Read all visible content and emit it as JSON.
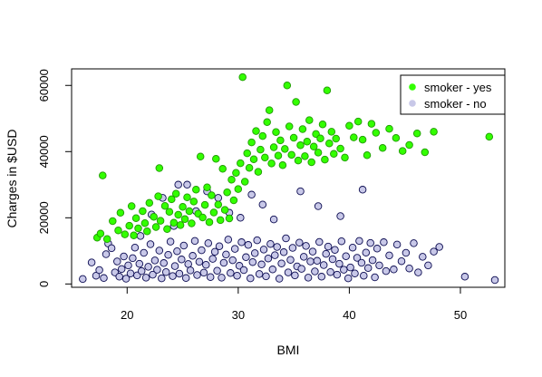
{
  "chart_data": {
    "type": "scatter",
    "xlabel": "BMI",
    "ylabel": "Charges in $USD",
    "xlim": [
      15,
      54
    ],
    "ylim": [
      -1000,
      65000
    ],
    "x_ticks": [
      20,
      30,
      40,
      50
    ],
    "y_ticks": [
      0,
      20000,
      40000,
      60000
    ],
    "x_tick_labels": [
      "20",
      "30",
      "40",
      "50"
    ],
    "y_tick_labels": [
      "0",
      "20000",
      "40000",
      "60000"
    ],
    "legend": {
      "position": "top-right",
      "entries": [
        {
          "label": "smoker - yes",
          "color": "#33ff00"
        },
        {
          "label": "smoker - no",
          "color": "#c8c8e8"
        }
      ]
    },
    "series": [
      {
        "name": "smoker - no",
        "fill": "#c8c8e8",
        "stroke": "#0a0a50",
        "points": [
          [
            16,
            1500
          ],
          [
            16.8,
            6500
          ],
          [
            17.2,
            2500
          ],
          [
            17.5,
            4200
          ],
          [
            17.9,
            1800
          ],
          [
            18.1,
            9000
          ],
          [
            18.3,
            12200
          ],
          [
            18.6,
            10800
          ],
          [
            18.9,
            3500
          ],
          [
            19.1,
            6800
          ],
          [
            19.3,
            2200
          ],
          [
            19.5,
            4500
          ],
          [
            19.7,
            8300
          ],
          [
            19.9,
            1600
          ],
          [
            20.1,
            5600
          ],
          [
            20.3,
            3200
          ],
          [
            20.5,
            7800
          ],
          [
            20.7,
            11000
          ],
          [
            20.9,
            2600
          ],
          [
            21.1,
            6100
          ],
          [
            21.2,
            14500
          ],
          [
            21.3,
            3900
          ],
          [
            21.5,
            9400
          ],
          [
            21.7,
            1900
          ],
          [
            21.9,
            5200
          ],
          [
            22.1,
            12000
          ],
          [
            22.2,
            21000
          ],
          [
            22.3,
            2800
          ],
          [
            22.5,
            7100
          ],
          [
            22.7,
            4300
          ],
          [
            22.9,
            10100
          ],
          [
            23.1,
            1700
          ],
          [
            23.2,
            26000
          ],
          [
            23.3,
            6300
          ],
          [
            23.5,
            3600
          ],
          [
            23.7,
            8800
          ],
          [
            23.9,
            12800
          ],
          [
            24.1,
            2400
          ],
          [
            24.2,
            17500
          ],
          [
            24.3,
            5400
          ],
          [
            24.5,
            9900
          ],
          [
            24.6,
            30000
          ],
          [
            24.7,
            3100
          ],
          [
            24.9,
            7400
          ],
          [
            25.1,
            11600
          ],
          [
            25.3,
            1800
          ],
          [
            25.4,
            30000
          ],
          [
            25.5,
            6000
          ],
          [
            25.7,
            4100
          ],
          [
            25.9,
            8500
          ],
          [
            26.1,
            13000
          ],
          [
            26.2,
            22000
          ],
          [
            26.3,
            2700
          ],
          [
            26.5,
            6700
          ],
          [
            26.7,
            10200
          ],
          [
            26.9,
            3400
          ],
          [
            27.1,
            5800
          ],
          [
            27.2,
            28000
          ],
          [
            27.3,
            12300
          ],
          [
            27.5,
            2100
          ],
          [
            27.7,
            7600
          ],
          [
            27.9,
            9700
          ],
          [
            28.1,
            4000
          ],
          [
            28.2,
            26000
          ],
          [
            28.3,
            11400
          ],
          [
            28.5,
            1900
          ],
          [
            28.7,
            6400
          ],
          [
            28.9,
            8900
          ],
          [
            29.1,
            13400
          ],
          [
            29.2,
            21500
          ],
          [
            29.3,
            3300
          ],
          [
            29.5,
            7200
          ],
          [
            29.7,
            10600
          ],
          [
            29.9,
            2500
          ],
          [
            30.1,
            5500
          ],
          [
            30.2,
            20000
          ],
          [
            30.3,
            12600
          ],
          [
            30.5,
            4200
          ],
          [
            30.7,
            8100
          ],
          [
            30.9,
            11800
          ],
          [
            31.1,
            1700
          ],
          [
            31.2,
            27000
          ],
          [
            31.3,
            6600
          ],
          [
            31.5,
            9300
          ],
          [
            31.7,
            13200
          ],
          [
            31.9,
            3000
          ],
          [
            32.1,
            5900
          ],
          [
            32.2,
            24000
          ],
          [
            32.3,
            10400
          ],
          [
            32.5,
            2300
          ],
          [
            32.7,
            7700
          ],
          [
            32.9,
            12100
          ],
          [
            33.1,
            4400
          ],
          [
            33.2,
            19500
          ],
          [
            33.3,
            8700
          ],
          [
            33.5,
            11200
          ],
          [
            33.7,
            1600
          ],
          [
            33.9,
            6200
          ],
          [
            34.1,
            9600
          ],
          [
            34.3,
            13800
          ],
          [
            34.5,
            3500
          ],
          [
            34.7,
            7300
          ],
          [
            34.9,
            10900
          ],
          [
            35.1,
            2600
          ],
          [
            35.3,
            5300
          ],
          [
            35.5,
            12500
          ],
          [
            35.6,
            28000
          ],
          [
            35.7,
            4600
          ],
          [
            35.9,
            8200
          ],
          [
            36.1,
            11500
          ],
          [
            36.3,
            1900
          ],
          [
            36.5,
            6800
          ],
          [
            36.7,
            9800
          ],
          [
            36.9,
            3800
          ],
          [
            37.1,
            7000
          ],
          [
            37.2,
            23500
          ],
          [
            37.3,
            12700
          ],
          [
            37.5,
            2200
          ],
          [
            37.7,
            5700
          ],
          [
            37.9,
            9100
          ],
          [
            38.1,
            11300
          ],
          [
            38.3,
            3600
          ],
          [
            38.5,
            7500
          ],
          [
            38.7,
            10300
          ],
          [
            38.9,
            2800
          ],
          [
            39.1,
            6100
          ],
          [
            39.2,
            20500
          ],
          [
            39.3,
            12900
          ],
          [
            39.5,
            4300
          ],
          [
            39.7,
            8400
          ],
          [
            39.9,
            1700
          ],
          [
            40.1,
            5000
          ],
          [
            40.3,
            11000
          ],
          [
            40.5,
            3200
          ],
          [
            40.7,
            7900
          ],
          [
            40.9,
            13000
          ],
          [
            41.1,
            6400
          ],
          [
            41.2,
            28500
          ],
          [
            41.3,
            2500
          ],
          [
            41.5,
            9500
          ],
          [
            41.7,
            4800
          ],
          [
            41.9,
            12400
          ],
          [
            42.1,
            7200
          ],
          [
            42.3,
            2000
          ],
          [
            42.5,
            10700
          ],
          [
            42.7,
            5600
          ],
          [
            43.1,
            12600
          ],
          [
            43.3,
            3900
          ],
          [
            43.6,
            8600
          ],
          [
            44.0,
            4400
          ],
          [
            44.3,
            11900
          ],
          [
            44.7,
            6900
          ],
          [
            45.1,
            9400
          ],
          [
            45.4,
            4700
          ],
          [
            45.8,
            12300
          ],
          [
            46.2,
            3500
          ],
          [
            46.6,
            8200
          ],
          [
            47.1,
            5600
          ],
          [
            47.6,
            9800
          ],
          [
            48.1,
            11200
          ],
          [
            50.4,
            2200
          ],
          [
            53.1,
            1200
          ]
        ]
      },
      {
        "name": "smoker - yes",
        "fill": "#33ff00",
        "stroke": "#1f9900",
        "points": [
          [
            17.3,
            14000
          ],
          [
            17.6,
            15200
          ],
          [
            17.8,
            32800
          ],
          [
            18.2,
            13600
          ],
          [
            18.7,
            19000
          ],
          [
            19.2,
            16200
          ],
          [
            19.4,
            21500
          ],
          [
            19.8,
            15000
          ],
          [
            20.2,
            17600
          ],
          [
            20.4,
            23500
          ],
          [
            20.6,
            14700
          ],
          [
            20.8,
            19900
          ],
          [
            21.0,
            16800
          ],
          [
            21.4,
            22000
          ],
          [
            21.6,
            18400
          ],
          [
            21.8,
            15900
          ],
          [
            22.0,
            24500
          ],
          [
            22.4,
            20300
          ],
          [
            22.6,
            17200
          ],
          [
            22.8,
            26500
          ],
          [
            22.9,
            35000
          ],
          [
            23.0,
            19100
          ],
          [
            23.4,
            23600
          ],
          [
            23.6,
            16600
          ],
          [
            23.8,
            21800
          ],
          [
            24.0,
            25600
          ],
          [
            24.2,
            18500
          ],
          [
            24.4,
            27300
          ],
          [
            24.6,
            20900
          ],
          [
            24.8,
            17800
          ],
          [
            25.0,
            23300
          ],
          [
            25.2,
            19600
          ],
          [
            25.4,
            26200
          ],
          [
            25.6,
            22000
          ],
          [
            25.8,
            18300
          ],
          [
            26.0,
            24900
          ],
          [
            26.2,
            28500
          ],
          [
            26.4,
            21200
          ],
          [
            26.6,
            38500
          ],
          [
            26.8,
            20100
          ],
          [
            27.0,
            23900
          ],
          [
            27.2,
            29200
          ],
          [
            27.4,
            18700
          ],
          [
            27.6,
            26800
          ],
          [
            27.8,
            21600
          ],
          [
            28.0,
            37800
          ],
          [
            28.2,
            24000
          ],
          [
            28.4,
            19300
          ],
          [
            28.6,
            34800
          ],
          [
            28.8,
            22400
          ],
          [
            29.0,
            27700
          ],
          [
            29.2,
            19800
          ],
          [
            29.4,
            31500
          ],
          [
            29.6,
            25300
          ],
          [
            29.8,
            33600
          ],
          [
            30.0,
            28700
          ],
          [
            30.2,
            36500
          ],
          [
            30.4,
            62500
          ],
          [
            30.6,
            30900
          ],
          [
            30.8,
            39500
          ],
          [
            31.0,
            35100
          ],
          [
            31.2,
            42800
          ],
          [
            31.4,
            37700
          ],
          [
            31.6,
            46200
          ],
          [
            31.8,
            33900
          ],
          [
            32.0,
            40600
          ],
          [
            32.2,
            44700
          ],
          [
            32.4,
            38200
          ],
          [
            32.6,
            48900
          ],
          [
            32.8,
            52500
          ],
          [
            33.0,
            36400
          ],
          [
            33.2,
            41300
          ],
          [
            33.4,
            45900
          ],
          [
            33.6,
            38800
          ],
          [
            33.8,
            43400
          ],
          [
            34.0,
            35900
          ],
          [
            34.2,
            40800
          ],
          [
            34.4,
            60000
          ],
          [
            34.6,
            47600
          ],
          [
            34.8,
            39000
          ],
          [
            35.0,
            44200
          ],
          [
            35.2,
            55000
          ],
          [
            35.4,
            37300
          ],
          [
            35.6,
            41900
          ],
          [
            35.8,
            46800
          ],
          [
            36.0,
            38600
          ],
          [
            36.2,
            43000
          ],
          [
            36.4,
            49500
          ],
          [
            36.6,
            36800
          ],
          [
            36.8,
            41500
          ],
          [
            37.0,
            45300
          ],
          [
            37.2,
            39700
          ],
          [
            37.4,
            44000
          ],
          [
            37.6,
            48200
          ],
          [
            37.8,
            37600
          ],
          [
            38.0,
            58500
          ],
          [
            38.2,
            42500
          ],
          [
            38.4,
            46000
          ],
          [
            38.6,
            39300
          ],
          [
            38.8,
            43900
          ],
          [
            39.2,
            40900
          ],
          [
            39.6,
            38200
          ],
          [
            40.0,
            47800
          ],
          [
            40.4,
            44300
          ],
          [
            40.8,
            49100
          ],
          [
            41.2,
            43600
          ],
          [
            41.6,
            38900
          ],
          [
            42.0,
            48400
          ],
          [
            42.4,
            45700
          ],
          [
            43.0,
            41100
          ],
          [
            43.6,
            46900
          ],
          [
            44.2,
            44100
          ],
          [
            44.8,
            40200
          ],
          [
            45.4,
            42000
          ],
          [
            46.1,
            45500
          ],
          [
            46.8,
            39800
          ],
          [
            47.6,
            46000
          ],
          [
            52.6,
            44500
          ]
        ]
      }
    ]
  }
}
